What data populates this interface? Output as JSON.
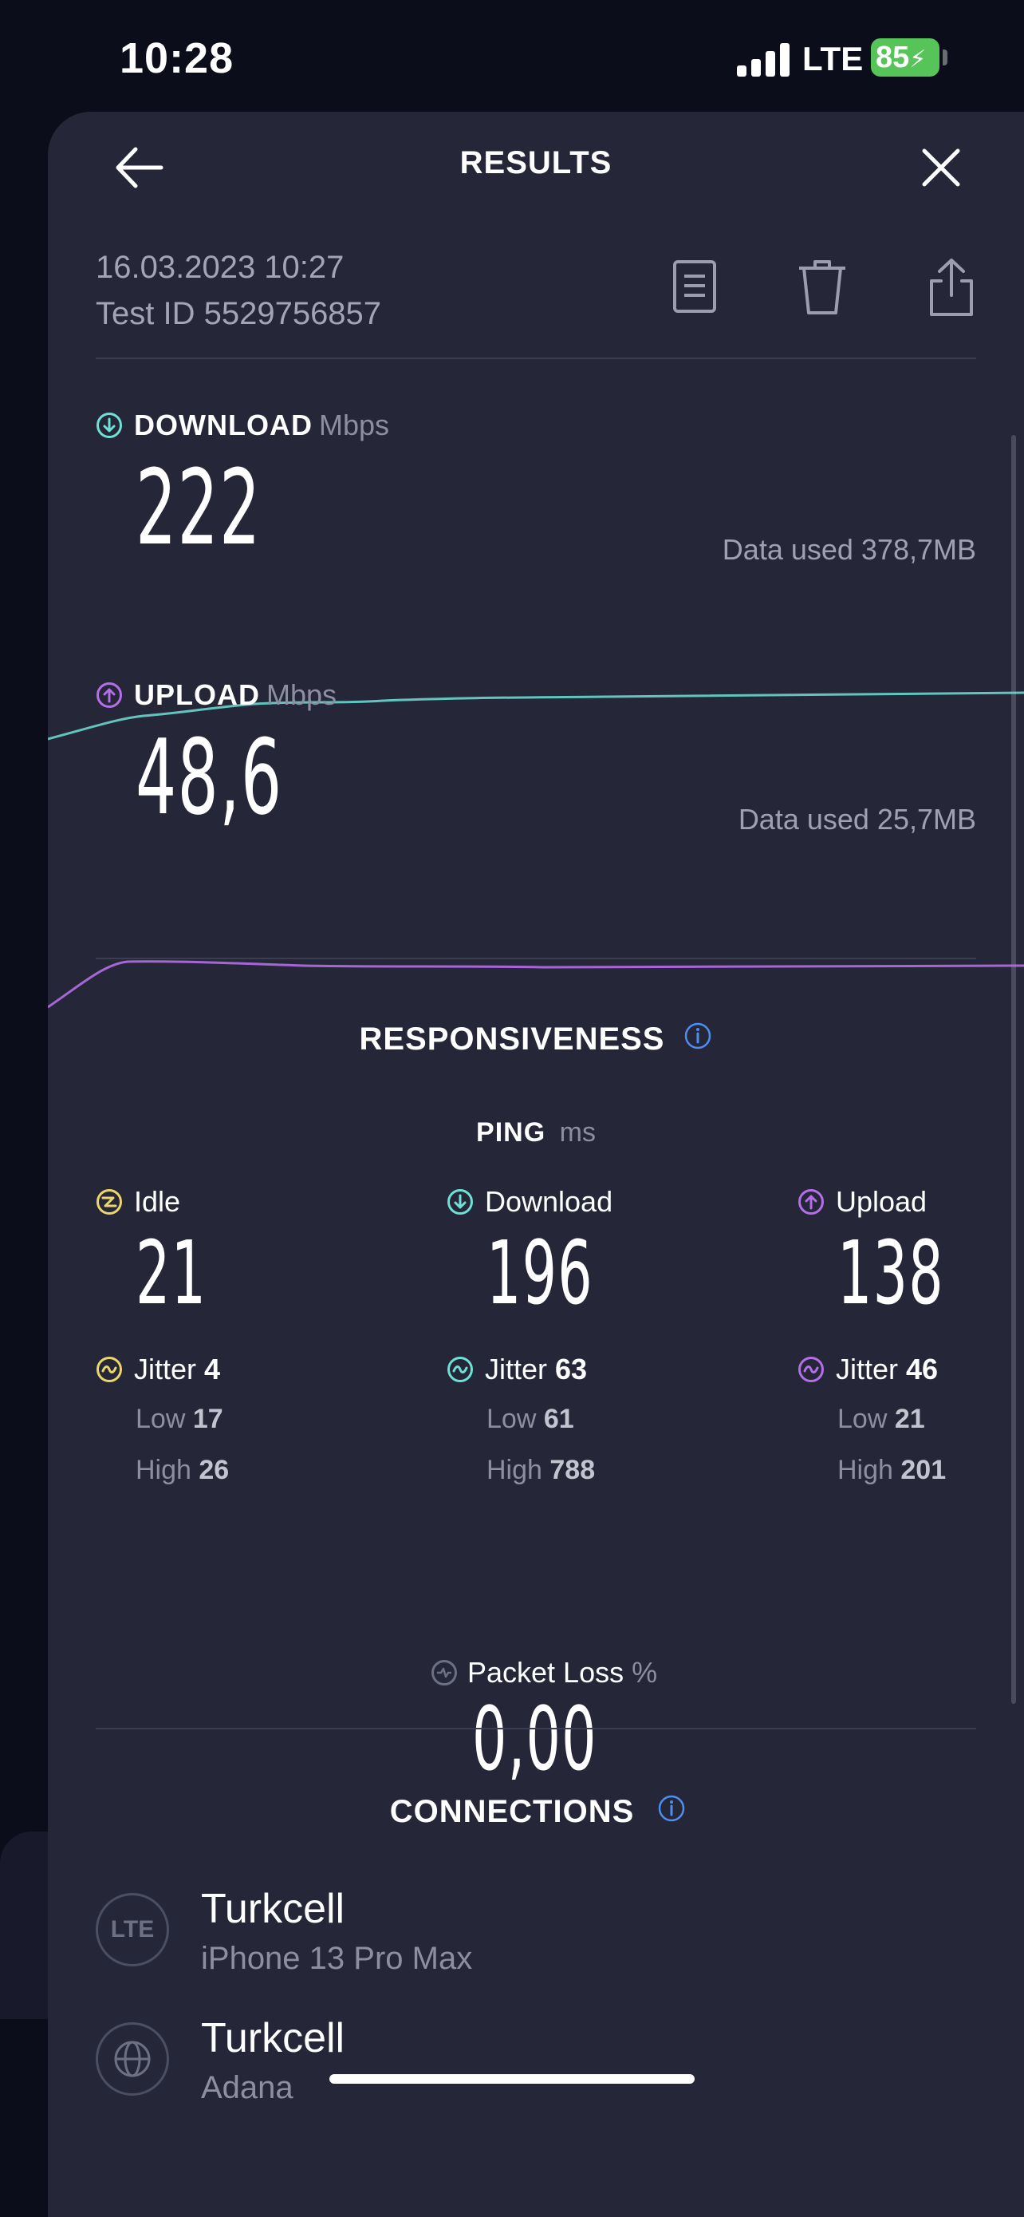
{
  "status_bar": {
    "time": "10:28",
    "network": "LTE",
    "battery": "85"
  },
  "header": {
    "title": "RESULTS"
  },
  "test_info": {
    "date": "16.03.2023 10:27",
    "test_id": "Test ID 5529756857"
  },
  "download": {
    "label": "DOWNLOAD",
    "unit": "Mbps",
    "value": "222",
    "data_used": "Data used 378,7MB",
    "color": "#6fe0d6"
  },
  "upload": {
    "label": "UPLOAD",
    "unit": "Mbps",
    "value": "48,6",
    "data_used": "Data used 25,7MB",
    "color": "#b56ee8"
  },
  "responsiveness": {
    "title": "RESPONSIVENESS",
    "ping_label": "PING",
    "ping_unit": "ms",
    "columns": [
      {
        "label": "Idle",
        "value": "21",
        "jitter_label": "Jitter",
        "jitter": "4",
        "low_label": "Low",
        "low": "17",
        "high_label": "High",
        "high": "26",
        "color": "#ecd66c"
      },
      {
        "label": "Download",
        "value": "196",
        "jitter_label": "Jitter",
        "jitter": "63",
        "low_label": "Low",
        "low": "61",
        "high_label": "High",
        "high": "788",
        "color": "#6fe0d6"
      },
      {
        "label": "Upload",
        "value": "138",
        "jitter_label": "Jitter",
        "jitter": "46",
        "low_label": "Low",
        "low": "21",
        "high_label": "High",
        "high": "201",
        "color": "#b56ee8"
      }
    ],
    "packet_loss_label": "Packet Loss",
    "packet_loss_unit": "%",
    "packet_loss_value": "0,00"
  },
  "connections": {
    "title": "CONNECTIONS",
    "items": [
      {
        "icon": "lte-icon",
        "icon_text": "LTE",
        "name": "Turkcell",
        "detail": "iPhone 13 Pro Max"
      },
      {
        "icon": "globe-icon",
        "name": "Turkcell",
        "detail": "Adana"
      }
    ]
  },
  "colors": {
    "background": "#0c0d1b",
    "sheet": "#252739",
    "info_accent": "#4f8ef0"
  }
}
